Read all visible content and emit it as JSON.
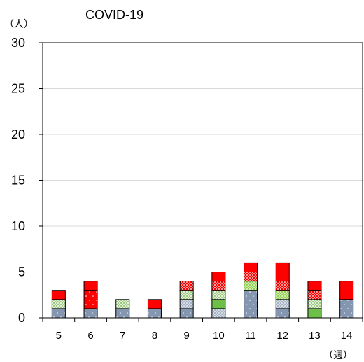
{
  "chart_data": {
    "type": "bar",
    "stacked": true,
    "title": "COVID-19",
    "ylabel": "（人）",
    "xlabel": "（週）",
    "ylim": [
      0,
      30
    ],
    "yticks": [
      0,
      5,
      10,
      15,
      20,
      25,
      30
    ],
    "grid": true,
    "categories": [
      "5",
      "6",
      "7",
      "8",
      "9",
      "10",
      "11",
      "12",
      "13",
      "14"
    ],
    "series": [
      {
        "values": [
          1,
          1,
          1,
          1,
          1,
          0,
          3,
          1,
          0,
          2
        ],
        "color": "#8496B0",
        "pattern": "dots-sparse-white"
      },
      {
        "values": [
          0,
          0,
          0,
          0,
          1,
          1,
          0,
          1,
          0,
          0
        ],
        "color": "#D5DCE4",
        "pattern": "dots-dense-blue"
      },
      {
        "values": [
          0,
          0,
          0,
          0,
          0,
          1,
          0,
          0,
          1,
          0
        ],
        "color": "#6CC04A",
        "pattern": "solid-green"
      },
      {
        "values": [
          0,
          0,
          0,
          0,
          0,
          0,
          1,
          1,
          0,
          0
        ],
        "color": "#92D050",
        "pattern": "dots-white-on-green"
      },
      {
        "values": [
          1,
          0,
          1,
          0,
          1,
          1,
          0,
          0,
          1,
          0
        ],
        "color": "#E2F0D9",
        "pattern": "dots-green-on-white"
      },
      {
        "values": [
          0,
          2,
          0,
          0,
          0,
          0,
          0,
          0,
          0,
          0
        ],
        "color": "#FF0000",
        "pattern": "dots-sparse-red"
      },
      {
        "values": [
          0,
          0,
          0,
          0,
          1,
          1,
          1,
          1,
          1,
          0
        ],
        "color": "#FF0000",
        "pattern": "dots-dense-red"
      },
      {
        "values": [
          1,
          1,
          0,
          1,
          0,
          1,
          1,
          2,
          1,
          2
        ],
        "color": "#FF0000",
        "pattern": "solid-red"
      }
    ]
  }
}
